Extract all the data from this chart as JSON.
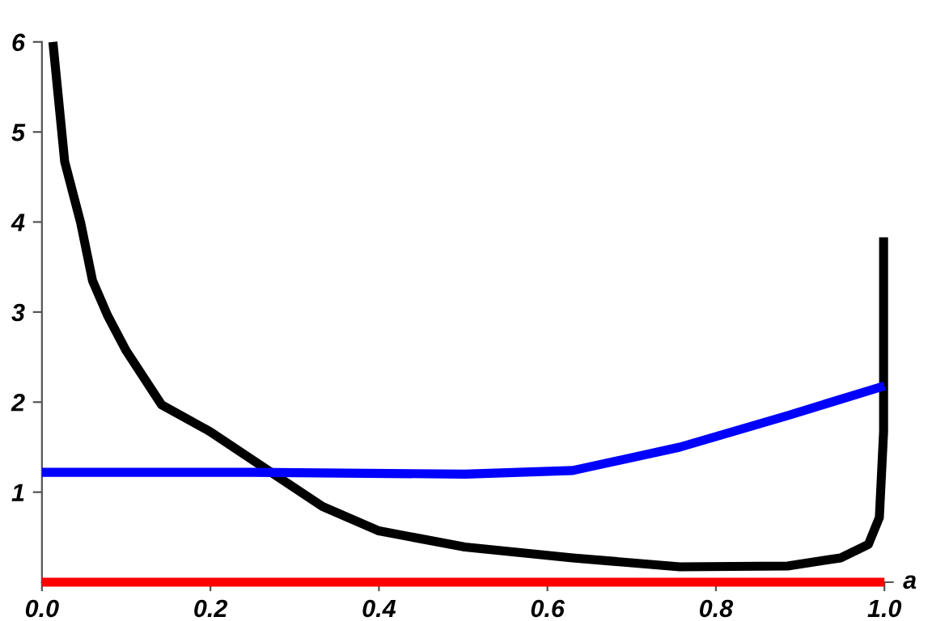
{
  "chart_data": {
    "type": "line",
    "xlabel": "a",
    "xlim": [
      0,
      1.01
    ],
    "ylim": [
      0,
      6
    ],
    "xticks": [
      {
        "value": 0,
        "label": "0.0"
      },
      {
        "value": 0.2,
        "label": "0.2"
      },
      {
        "value": 0.4,
        "label": "0.4"
      },
      {
        "value": 0.6,
        "label": "0.6"
      },
      {
        "value": 0.8,
        "label": "0.8"
      },
      {
        "value": 1,
        "label": "1.0"
      }
    ],
    "yticks": [
      1,
      2,
      3,
      4,
      5,
      6
    ],
    "grid": false,
    "legend": false,
    "line_style": "solid",
    "marker": "none",
    "series": [
      {
        "color": "#000000",
        "x": [
          0.013,
          0.027,
          0.046,
          0.06,
          0.078,
          0.1,
          0.142,
          0.2,
          0.272,
          0.333,
          0.4,
          0.502,
          0.63,
          0.757,
          0.885,
          0.948,
          0.981,
          0.994,
          0.999,
          0.999
        ],
        "values": [
          6,
          4.67,
          3.99,
          3.35,
          2.96,
          2.57,
          1.97,
          1.67,
          1.22,
          0.84,
          0.57,
          0.39,
          0.27,
          0.17,
          0.18,
          0.27,
          0.42,
          0.72,
          1.67,
          3.83
        ]
      },
      {
        "color": "#0000ff",
        "x": [
          0,
          0.25,
          0.502,
          0.63,
          0.757,
          0.885,
          1.0
        ],
        "values": [
          1.22,
          1.22,
          1.2,
          1.24,
          1.5,
          1.85,
          2.18
        ]
      },
      {
        "color": "#ff0000",
        "x": [
          0,
          1.0
        ],
        "values": [
          0,
          0
        ]
      }
    ]
  }
}
